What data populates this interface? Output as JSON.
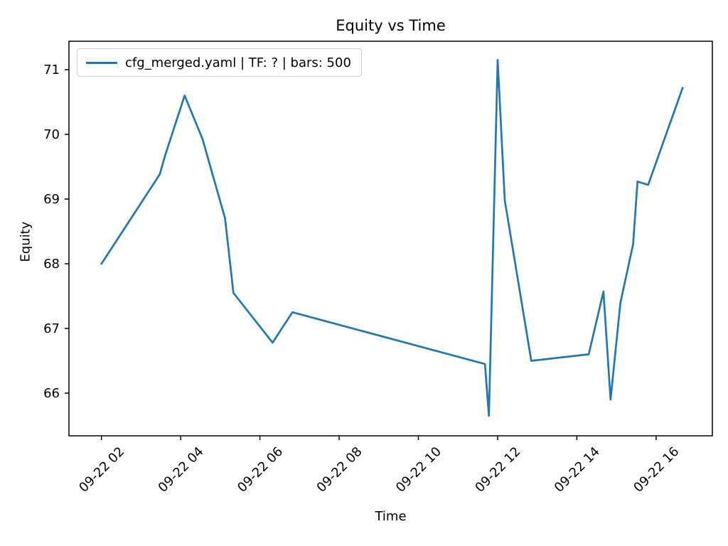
{
  "chart_data": {
    "type": "line",
    "title": "Equity vs Time",
    "xlabel": "Time",
    "ylabel": "Equity",
    "grid": false,
    "background_color": "#ffffff",
    "text_color": "#000000",
    "legend_position": "upper-left",
    "legend": [
      {
        "label": "cfg_merged.yaml | TF: ? | bars: 500",
        "color": "#1f77b4"
      }
    ],
    "x_axis": {
      "tick_labels": [
        "09-22 02",
        "09-22 04",
        "09-22 06",
        "09-22 08",
        "09-22 10",
        "09-22 12",
        "09-22 14",
        "09-22 16"
      ],
      "tick_hours": [
        2,
        4,
        6,
        8,
        10,
        12,
        14,
        16
      ],
      "range_hours": [
        1.18,
        17.42
      ],
      "label_rotation_deg": 45
    },
    "y_axis": {
      "tick_labels": [
        "66",
        "67",
        "68",
        "69",
        "70",
        "71"
      ],
      "tick_values": [
        66,
        67,
        68,
        69,
        70,
        71
      ],
      "range": [
        65.34,
        71.44
      ]
    },
    "series": [
      {
        "name": "cfg_merged.yaml | TF: ? | bars: 500",
        "color": "#1f77b4",
        "x_hours": [
          2.0,
          3.47,
          3.62,
          4.1,
          4.55,
          5.12,
          5.33,
          6.32,
          6.82,
          11.68,
          11.78,
          12.0,
          12.18,
          12.85,
          14.3,
          14.67,
          14.85,
          15.1,
          15.42,
          15.53,
          15.8,
          16.67
        ],
        "y": [
          68.0,
          69.38,
          69.7,
          70.6,
          69.93,
          68.7,
          67.55,
          66.78,
          67.25,
          66.45,
          65.65,
          71.15,
          68.98,
          66.5,
          66.6,
          67.57,
          65.9,
          67.4,
          68.3,
          69.27,
          69.22,
          70.72
        ]
      }
    ]
  }
}
